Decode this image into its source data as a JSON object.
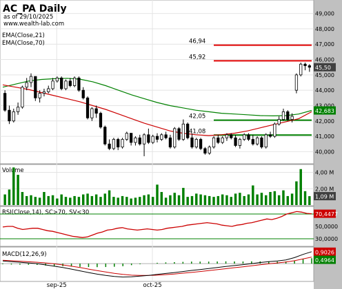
{
  "header": {
    "ticker": "AC_PA Daily",
    "asof": "as of 29/10/2025",
    "site": "www.wealth-lab.com"
  },
  "colors": {
    "price_axis_bg": "#c0c0c0",
    "ema21": "#cc0000",
    "ema70": "#008000",
    "resistance": "#e00000",
    "support": "#008000",
    "volume": "#008000",
    "rsi": "#cc0000",
    "rsi_bands": "#008000",
    "macd": "#000000",
    "macd_signal": "#cc0000",
    "macd_hist": "#008000",
    "last_price_box": "#404040",
    "ema70_box": "#008000",
    "rsi_box": "#cc0000"
  },
  "chart_data": {
    "type": "candlestick",
    "price_panel": {
      "legend": [
        "EMA(Close,21)",
        "EMA(Close,70)"
      ],
      "y_ticks": [
        "49,000",
        "48,000",
        "47,000",
        "46,000",
        "45,000",
        "44,000",
        "43,000",
        "42,000",
        "41,000",
        "40,000"
      ],
      "ylim": [
        39.3,
        49.7
      ],
      "x_labels": [
        "sep-25",
        "oct-25"
      ],
      "last_price_label": "45,50",
      "ema70_last_label": "42,683",
      "levels": [
        {
          "label": "46,94",
          "value": 46.94,
          "kind": "resistance"
        },
        {
          "label": "45,92",
          "value": 45.92,
          "kind": "resistance"
        },
        {
          "label": "42,05",
          "value": 42.05,
          "kind": "support"
        },
        {
          "label": "41,08",
          "value": 41.08,
          "kind": "support"
        }
      ],
      "candles": [
        [
          43.8,
          44.0,
          42.6,
          42.7
        ],
        [
          42.7,
          43.0,
          41.8,
          42.0
        ],
        [
          42.0,
          42.8,
          41.9,
          42.6
        ],
        [
          42.6,
          43.2,
          42.4,
          42.9
        ],
        [
          42.9,
          44.3,
          42.8,
          44.2
        ],
        [
          44.2,
          44.8,
          44.0,
          44.5
        ],
        [
          44.5,
          45.1,
          44.2,
          44.9
        ],
        [
          44.9,
          44.9,
          43.3,
          43.5
        ],
        [
          43.5,
          44.0,
          43.2,
          43.8
        ],
        [
          43.8,
          44.1,
          43.6,
          43.9
        ],
        [
          43.9,
          44.3,
          43.8,
          44.1
        ],
        [
          44.1,
          44.8,
          44.0,
          44.6
        ],
        [
          44.6,
          44.9,
          44.5,
          44.8
        ],
        [
          44.8,
          44.9,
          44.0,
          44.1
        ],
        [
          44.1,
          44.7,
          44.0,
          44.6
        ],
        [
          44.6,
          44.8,
          44.2,
          44.3
        ],
        [
          44.3,
          44.9,
          44.2,
          44.8
        ],
        [
          44.8,
          44.9,
          43.9,
          44.0
        ],
        [
          44.0,
          44.2,
          43.4,
          43.5
        ],
        [
          43.5,
          43.6,
          42.1,
          42.2
        ],
        [
          42.2,
          42.9,
          42.0,
          42.8
        ],
        [
          42.8,
          43.0,
          42.2,
          42.5
        ],
        [
          42.5,
          42.6,
          41.5,
          41.6
        ],
        [
          41.6,
          41.7,
          40.4,
          40.5
        ],
        [
          40.5,
          40.8,
          40.1,
          40.2
        ],
        [
          40.2,
          40.9,
          40.1,
          40.8
        ],
        [
          40.8,
          40.9,
          40.1,
          40.3
        ],
        [
          40.3,
          40.9,
          40.2,
          40.8
        ],
        [
          40.8,
          41.3,
          40.7,
          41.2
        ],
        [
          41.2,
          41.2,
          40.4,
          40.6
        ],
        [
          40.6,
          41.0,
          40.4,
          40.9
        ],
        [
          40.9,
          41.1,
          40.4,
          40.5
        ],
        [
          40.5,
          41.2,
          39.7,
          41.1
        ],
        [
          41.1,
          41.5,
          40.5,
          40.6
        ],
        [
          40.6,
          41.1,
          40.5,
          41.0
        ],
        [
          41.0,
          41.2,
          40.6,
          40.8
        ],
        [
          40.8,
          41.2,
          40.7,
          41.1
        ],
        [
          41.1,
          41.3,
          40.8,
          40.9
        ],
        [
          40.9,
          41.1,
          40.2,
          40.3
        ],
        [
          40.3,
          41.6,
          40.2,
          41.5
        ],
        [
          41.5,
          41.6,
          40.7,
          40.8
        ],
        [
          40.8,
          42.1,
          40.7,
          41.8
        ],
        [
          41.8,
          41.9,
          40.8,
          40.9
        ],
        [
          40.9,
          41.2,
          40.2,
          40.3
        ],
        [
          40.3,
          40.9,
          40.2,
          40.8
        ],
        [
          40.8,
          40.9,
          40.1,
          40.2
        ],
        [
          40.2,
          40.3,
          39.8,
          39.9
        ],
        [
          39.9,
          40.4,
          39.8,
          40.3
        ],
        [
          40.3,
          41.0,
          40.2,
          40.9
        ],
        [
          40.9,
          41.1,
          40.5,
          40.6
        ],
        [
          40.6,
          41.0,
          40.5,
          40.9
        ],
        [
          40.9,
          41.2,
          40.7,
          41.1
        ],
        [
          41.1,
          41.2,
          40.8,
          40.9
        ],
        [
          40.9,
          41.1,
          40.3,
          40.4
        ],
        [
          40.4,
          40.9,
          40.2,
          40.8
        ],
        [
          40.8,
          41.2,
          40.7,
          41.1
        ],
        [
          41.1,
          41.2,
          40.7,
          40.8
        ],
        [
          40.8,
          41.1,
          40.4,
          40.5
        ],
        [
          40.5,
          41.0,
          40.4,
          40.9
        ],
        [
          40.9,
          41.0,
          40.2,
          40.3
        ],
        [
          40.3,
          41.2,
          40.2,
          41.1
        ],
        [
          41.1,
          41.3,
          40.9,
          41.0
        ],
        [
          41.0,
          41.9,
          40.9,
          41.8
        ],
        [
          41.8,
          42.3,
          41.7,
          42.1
        ],
        [
          42.1,
          42.8,
          42.0,
          42.6
        ],
        [
          42.6,
          42.7,
          42.0,
          42.1
        ],
        [
          42.1,
          42.5,
          41.9,
          42.3
        ],
        [
          44.0,
          45.1,
          43.8,
          45.0
        ],
        [
          45.0,
          45.8,
          44.9,
          45.7
        ],
        [
          45.7,
          45.8,
          45.3,
          45.6
        ],
        [
          45.6,
          45.7,
          45.2,
          45.5
        ]
      ],
      "ema21": [
        44.35,
        44.2,
        44.05,
        43.85,
        43.65,
        43.45,
        43.25,
        43.0,
        42.75,
        42.45,
        42.15,
        41.85,
        41.6,
        41.35,
        41.2,
        41.1,
        41.05,
        41.1,
        41.2,
        41.35,
        41.55,
        41.75,
        41.95,
        42.15,
        42.6
      ],
      "ema70": [
        44.2,
        44.4,
        44.6,
        44.7,
        44.75,
        44.78,
        44.72,
        44.55,
        44.3,
        44.0,
        43.7,
        43.45,
        43.2,
        43.0,
        42.85,
        42.7,
        42.6,
        42.5,
        42.45,
        42.4,
        42.35,
        42.33,
        42.35,
        42.45,
        42.683
      ]
    },
    "volume_panel": {
      "label": "Volume",
      "y_ticks": [
        "4,00 M",
        "2,00 M"
      ],
      "ylim": [
        0,
        4.8
      ],
      "last_label": "1,09 M",
      "values": [
        1.3,
        1.9,
        4.6,
        3.7,
        1.6,
        1.1,
        1.2,
        1.0,
        0.9,
        1.6,
        1.1,
        1.2,
        0.8,
        1.3,
        1.0,
        0.9,
        1.1,
        1.0,
        1.3,
        1.4,
        1.1,
        1.3,
        1.0,
        1.4,
        1.8,
        1.0,
        0.9,
        1.1,
        1.0,
        0.8,
        0.9,
        1.0,
        1.2,
        1.3,
        1.0,
        2.5,
        1.6,
        0.9,
        1.2,
        1.5,
        1.2,
        2.1,
        1.0,
        1.1,
        1.4,
        1.3,
        1.2,
        1.1,
        1.0,
        1.1,
        1.3,
        1.2,
        1.0,
        1.4,
        1.5,
        1.1,
        1.3,
        2.4,
        1.3,
        1.5,
        1.2,
        1.6,
        1.7,
        1.2,
        1.8,
        1.1,
        1.4,
        2.9,
        4.4,
        1.7,
        1.09
      ]
    },
    "rsi_panel": {
      "label": "RSI(Close,14), SC>70, SV<30",
      "y_ticks": [
        "70,4477",
        "50,0000",
        "30,0000"
      ],
      "ylim": [
        20,
        80
      ],
      "bands": [
        70,
        30
      ],
      "last_label": "70,4477",
      "values": [
        49,
        50,
        50,
        47,
        45,
        46,
        47,
        47,
        45,
        43,
        42,
        40,
        38,
        36,
        34,
        33,
        32,
        33,
        36,
        39,
        41,
        44,
        45,
        47,
        48,
        46,
        45,
        44,
        45,
        46,
        45,
        44,
        45,
        47,
        48,
        49,
        50,
        52,
        53,
        54,
        55,
        56,
        55,
        54,
        52,
        51,
        50,
        52,
        53,
        55,
        56,
        58,
        60,
        62,
        61,
        63,
        66,
        70,
        72,
        74,
        73,
        71,
        70.4477
      ]
    },
    "macd_panel": {
      "label": "MACD(12,26,9)",
      "y_ticks": [
        "0,9026",
        "0,4964"
      ],
      "last_labels": [
        "0,9026",
        "0,4964"
      ],
      "ylim": [
        -1.25,
        1.1
      ],
      "macd": [
        0.2,
        0.15,
        0.1,
        0.05,
        0.0,
        -0.1,
        -0.2,
        -0.3,
        -0.42,
        -0.55,
        -0.68,
        -0.8,
        -0.9,
        -0.98,
        -1.02,
        -1.0,
        -0.95,
        -0.9,
        -0.82,
        -0.75,
        -0.68,
        -0.6,
        -0.52,
        -0.45,
        -0.38,
        -0.3,
        -0.22,
        -0.15,
        -0.08,
        0.0,
        0.08,
        0.15,
        0.2,
        0.28,
        0.45,
        0.7,
        0.9026
      ],
      "signal": [
        0.25,
        0.22,
        0.18,
        0.14,
        0.1,
        0.05,
        -0.02,
        -0.1,
        -0.2,
        -0.3,
        -0.42,
        -0.53,
        -0.64,
        -0.74,
        -0.82,
        -0.88,
        -0.9,
        -0.9,
        -0.88,
        -0.84,
        -0.79,
        -0.73,
        -0.67,
        -0.6,
        -0.53,
        -0.46,
        -0.39,
        -0.31,
        -0.24,
        -0.17,
        -0.09,
        -0.02,
        0.05,
        0.12,
        0.22,
        0.36,
        0.4964
      ]
    }
  }
}
